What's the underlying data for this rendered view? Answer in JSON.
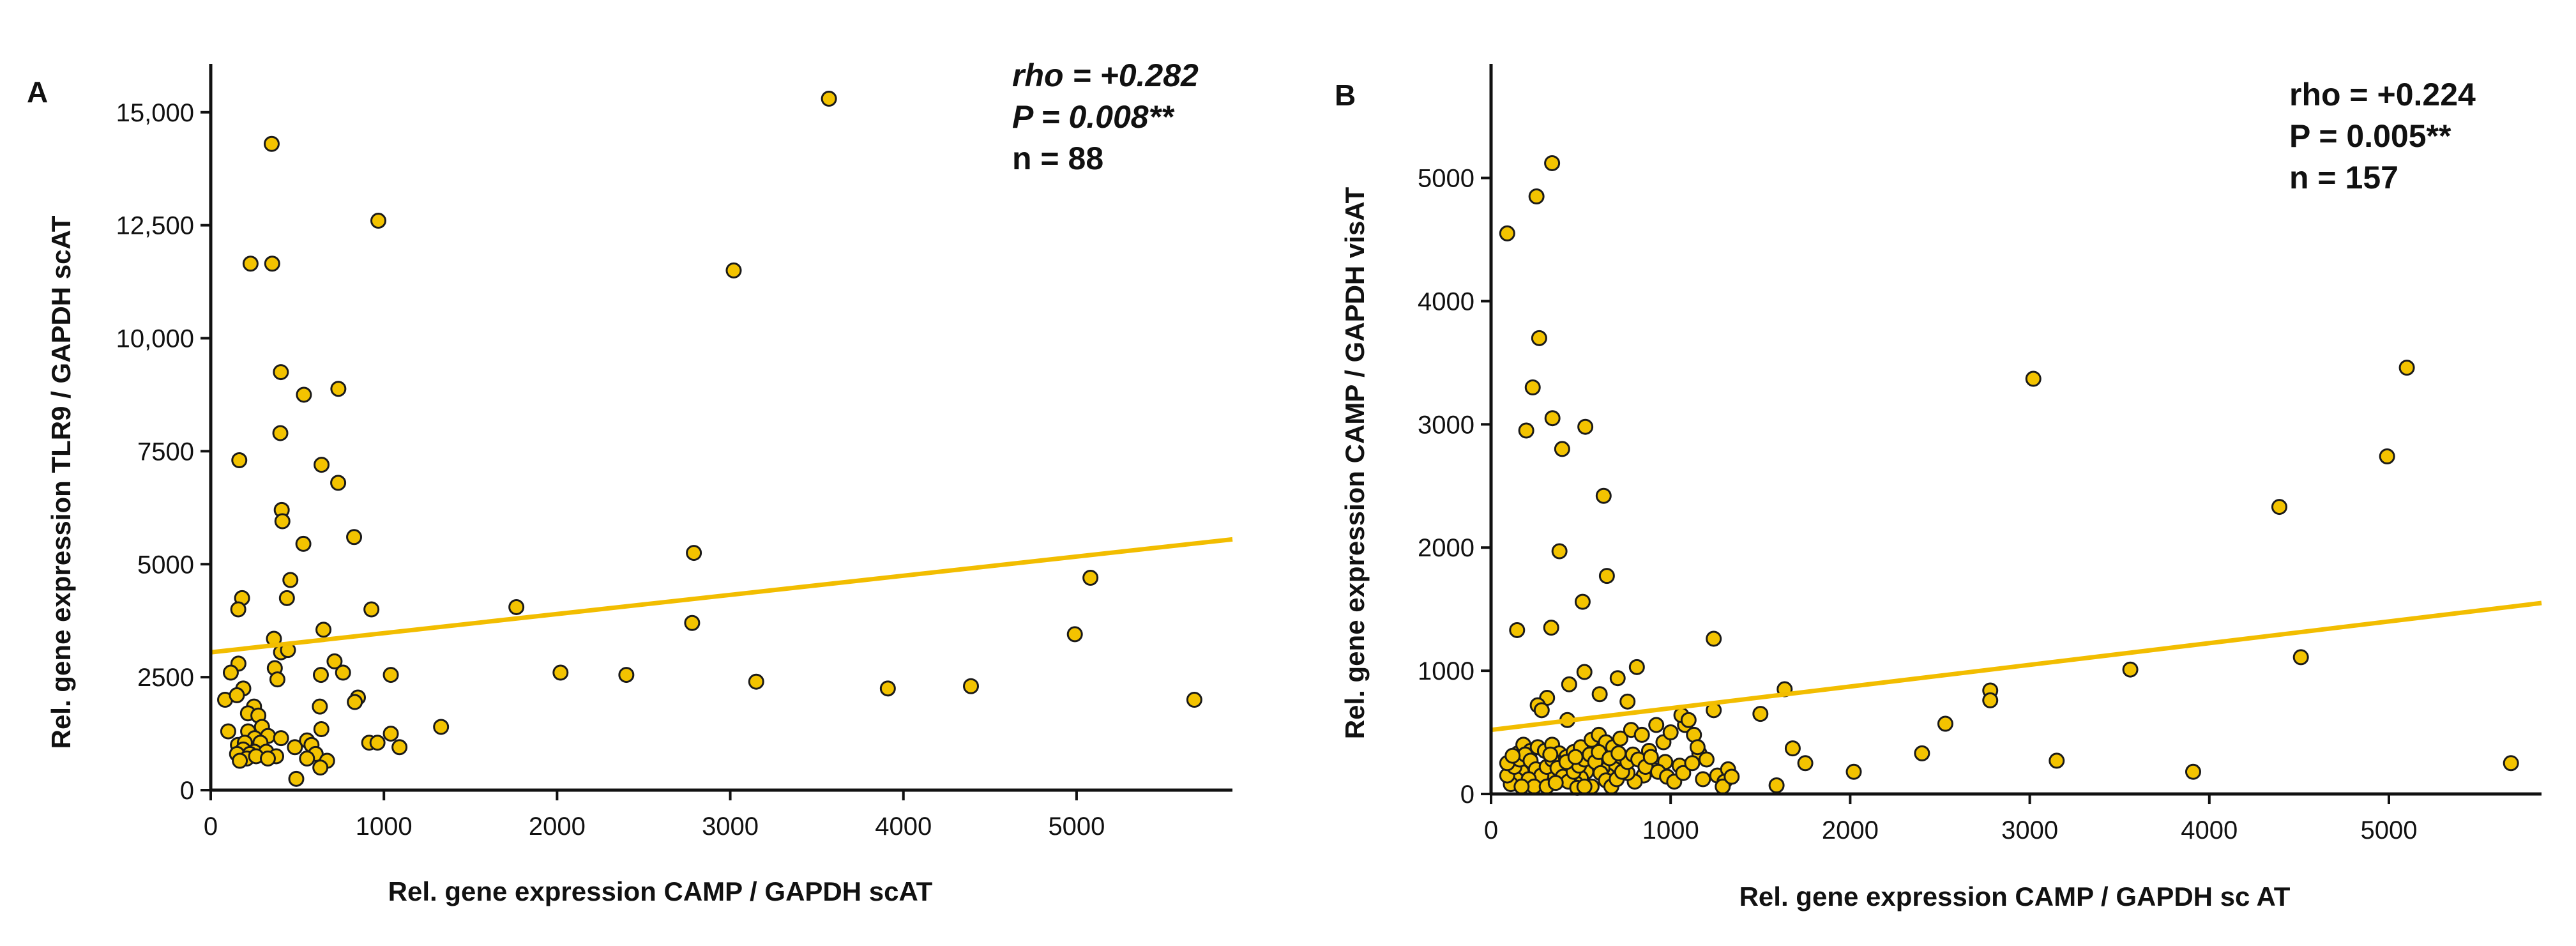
{
  "colors": {
    "point_fill": "#f3c300",
    "point_stroke": "#1a1a1a",
    "trend": "#f2bd00",
    "axis": "#111111"
  },
  "chart_data": [
    {
      "type": "scatter",
      "panel": "A",
      "xlabel": "Rel. gene expression CAMP / GAPDH scAT",
      "ylabel": "Rel. gene expression TLR9 / GAPDH scAT",
      "xlim": [
        0,
        5900
      ],
      "ylim": [
        0,
        16000
      ],
      "xticks": [
        0,
        1000,
        2000,
        3000,
        4000,
        5000
      ],
      "yticks": [
        0,
        2500,
        5000,
        7500,
        10000,
        12500,
        15000
      ],
      "xtick_labels": [
        "0",
        "1000",
        "2000",
        "3000",
        "4000",
        "5000"
      ],
      "ytick_labels": [
        "0",
        "2500",
        "5000",
        "7500",
        "10,000",
        "12,500",
        "15,000"
      ],
      "stats": {
        "rho": "rho = +0.282",
        "p": "P = 0.008**",
        "n": "n = 88"
      },
      "trendline": {
        "x": [
          0,
          5900
        ],
        "y": [
          3050,
          5550
        ]
      },
      "points": [
        [
          352,
          14300
        ],
        [
          3570,
          15300
        ],
        [
          968,
          12600
        ],
        [
          230,
          11650
        ],
        [
          355,
          11650
        ],
        [
          3020,
          11500
        ],
        [
          405,
          9250
        ],
        [
          538,
          8750
        ],
        [
          737,
          8880
        ],
        [
          402,
          7900
        ],
        [
          165,
          7300
        ],
        [
          640,
          7200
        ],
        [
          736,
          6800
        ],
        [
          410,
          6200
        ],
        [
          414,
          5950
        ],
        [
          828,
          5600
        ],
        [
          535,
          5450
        ],
        [
          2790,
          5250
        ],
        [
          5080,
          4700
        ],
        [
          460,
          4650
        ],
        [
          181,
          4250
        ],
        [
          440,
          4250
        ],
        [
          1765,
          4050
        ],
        [
          159,
          4000
        ],
        [
          928,
          4000
        ],
        [
          2780,
          3700
        ],
        [
          651,
          3550
        ],
        [
          365,
          3350
        ],
        [
          4990,
          3450
        ],
        [
          406,
          3050
        ],
        [
          446,
          3100
        ],
        [
          715,
          2850
        ],
        [
          370,
          2700
        ],
        [
          160,
          2800
        ],
        [
          116,
          2600
        ],
        [
          764,
          2600
        ],
        [
          636,
          2550
        ],
        [
          1040,
          2550
        ],
        [
          385,
          2450
        ],
        [
          2020,
          2600
        ],
        [
          2400,
          2550
        ],
        [
          3150,
          2400
        ],
        [
          3910,
          2250
        ],
        [
          4390,
          2300
        ],
        [
          5680,
          2000
        ],
        [
          188,
          2250
        ],
        [
          83,
          2000
        ],
        [
          850,
          2050
        ],
        [
          832,
          1950
        ],
        [
          151,
          2100
        ],
        [
          250,
          1850
        ],
        [
          630,
          1850
        ],
        [
          215,
          1700
        ],
        [
          275,
          1650
        ],
        [
          101,
          1300
        ],
        [
          296,
          1400
        ],
        [
          1330,
          1400
        ],
        [
          216,
          1300
        ],
        [
          331,
          1200
        ],
        [
          254,
          1150
        ],
        [
          406,
          1150
        ],
        [
          639,
          1350
        ],
        [
          1040,
          1250
        ],
        [
          157,
          1000
        ],
        [
          197,
          1050
        ],
        [
          287,
          1050
        ],
        [
          556,
          1100
        ],
        [
          915,
          1050
        ],
        [
          963,
          1050
        ],
        [
          1090,
          950
        ],
        [
          187,
          900
        ],
        [
          252,
          850
        ],
        [
          152,
          800
        ],
        [
          226,
          800
        ],
        [
          321,
          850
        ],
        [
          486,
          950
        ],
        [
          582,
          1000
        ],
        [
          378,
          750
        ],
        [
          208,
          700
        ],
        [
          262,
          750
        ],
        [
          330,
          700
        ],
        [
          168,
          650
        ],
        [
          606,
          800
        ],
        [
          556,
          700
        ],
        [
          672,
          650
        ],
        [
          633,
          500
        ],
        [
          494,
          250
        ]
      ]
    },
    {
      "type": "scatter",
      "panel": "B",
      "xlabel": "Rel. gene expression CAMP / GAPDH sc AT",
      "ylabel": "Rel. gene expression CAMP / GAPDH visAT",
      "xlim": [
        0,
        5850
      ],
      "ylim": [
        0,
        5900
      ],
      "xticks": [
        0,
        1000,
        2000,
        3000,
        4000,
        5000
      ],
      "yticks": [
        0,
        1000,
        2000,
        3000,
        4000,
        5000
      ],
      "xtick_labels": [
        "0",
        "1000",
        "2000",
        "3000",
        "4000",
        "5000"
      ],
      "ytick_labels": [
        "0",
        "1000",
        "2000",
        "3000",
        "4000",
        "5000"
      ],
      "stats": {
        "rho": "rho = +0.224",
        "p": "P = 0.005**",
        "n": "n = 157"
      },
      "trendline": {
        "x": [
          0,
          5850
        ],
        "y": [
          520,
          1550
        ]
      },
      "points": [
        [
          340,
          5120
        ],
        [
          90,
          4550
        ],
        [
          253,
          4850
        ],
        [
          268,
          3700
        ],
        [
          232,
          3300
        ],
        [
          196,
          2950
        ],
        [
          342,
          3050
        ],
        [
          525,
          2980
        ],
        [
          396,
          2800
        ],
        [
          3020,
          3370
        ],
        [
          5100,
          3460
        ],
        [
          4990,
          2740
        ],
        [
          4390,
          2330
        ],
        [
          627,
          2420
        ],
        [
          381,
          1970
        ],
        [
          645,
          1770
        ],
        [
          145,
          1330
        ],
        [
          335,
          1350
        ],
        [
          510,
          1560
        ],
        [
          1240,
          1260
        ],
        [
          3560,
          1010
        ],
        [
          4510,
          1110
        ],
        [
          2780,
          840
        ],
        [
          2780,
          760
        ],
        [
          1635,
          850
        ],
        [
          520,
          990
        ],
        [
          705,
          940
        ],
        [
          812,
          1030
        ],
        [
          435,
          890
        ],
        [
          312,
          780
        ],
        [
          260,
          720
        ],
        [
          282,
          680
        ],
        [
          605,
          810
        ],
        [
          760,
          750
        ],
        [
          1500,
          650
        ],
        [
          425,
          600
        ],
        [
          920,
          560
        ],
        [
          1080,
          560
        ],
        [
          1240,
          680
        ],
        [
          2530,
          570
        ],
        [
          2400,
          330
        ],
        [
          3150,
          270
        ],
        [
          3910,
          180
        ],
        [
          5680,
          250
        ],
        [
          2020,
          180
        ],
        [
          1750,
          250
        ],
        [
          1680,
          370
        ],
        [
          1590,
          70
        ],
        [
          150,
          330
        ],
        [
          180,
          400
        ],
        [
          220,
          350
        ],
        [
          260,
          380
        ],
        [
          300,
          350
        ],
        [
          340,
          400
        ],
        [
          380,
          330
        ],
        [
          420,
          300
        ],
        [
          460,
          340
        ],
        [
          500,
          380
        ],
        [
          560,
          440
        ],
        [
          600,
          480
        ],
        [
          640,
          420
        ],
        [
          680,
          380
        ],
        [
          720,
          450
        ],
        [
          780,
          520
        ],
        [
          840,
          480
        ],
        [
          880,
          350
        ],
        [
          960,
          420
        ],
        [
          1000,
          500
        ],
        [
          1060,
          640
        ],
        [
          1100,
          600
        ],
        [
          1130,
          480
        ],
        [
          1160,
          330
        ],
        [
          1200,
          280
        ],
        [
          1260,
          150
        ],
        [
          1300,
          100
        ],
        [
          1320,
          200
        ],
        [
          1180,
          120
        ],
        [
          1050,
          230
        ],
        [
          970,
          260
        ],
        [
          900,
          200
        ],
        [
          850,
          150
        ],
        [
          800,
          100
        ],
        [
          760,
          170
        ],
        [
          730,
          240
        ],
        [
          690,
          200
        ],
        [
          650,
          150
        ],
        [
          620,
          210
        ],
        [
          590,
          280
        ],
        [
          560,
          230
        ],
        [
          530,
          180
        ],
        [
          500,
          130
        ],
        [
          470,
          90
        ],
        [
          440,
          150
        ],
        [
          410,
          210
        ],
        [
          380,
          250
        ],
        [
          350,
          180
        ],
        [
          320,
          130
        ],
        [
          290,
          90
        ],
        [
          260,
          160
        ],
        [
          230,
          210
        ],
        [
          200,
          250
        ],
        [
          170,
          180
        ],
        [
          140,
          120
        ],
        [
          110,
          80
        ],
        [
          90,
          150
        ],
        [
          130,
          220
        ],
        [
          160,
          280
        ],
        [
          190,
          320
        ],
        [
          220,
          270
        ],
        [
          250,
          200
        ],
        [
          280,
          150
        ],
        [
          310,
          220
        ],
        [
          340,
          280
        ],
        [
          370,
          210
        ],
        [
          400,
          140
        ],
        [
          430,
          100
        ],
        [
          460,
          180
        ],
        [
          490,
          230
        ],
        [
          520,
          280
        ],
        [
          550,
          320
        ],
        [
          580,
          260
        ],
        [
          610,
          170
        ],
        [
          640,
          110
        ],
        [
          670,
          60
        ],
        [
          700,
          120
        ],
        [
          730,
          180
        ],
        [
          760,
          260
        ],
        [
          790,
          320
        ],
        [
          820,
          280
        ],
        [
          860,
          220
        ],
        [
          890,
          300
        ],
        [
          930,
          180
        ],
        [
          980,
          140
        ],
        [
          1020,
          100
        ],
        [
          1070,
          170
        ],
        [
          1120,
          250
        ],
        [
          1150,
          380
        ],
        [
          210,
          120
        ],
        [
          240,
          60
        ],
        [
          310,
          60
        ],
        [
          360,
          90
        ],
        [
          480,
          50
        ],
        [
          560,
          60
        ],
        [
          90,
          250
        ],
        [
          120,
          310
        ],
        [
          170,
          60
        ],
        [
          330,
          320
        ],
        [
          420,
          260
        ],
        [
          470,
          300
        ],
        [
          520,
          60
        ],
        [
          600,
          340
        ],
        [
          660,
          290
        ],
        [
          710,
          330
        ],
        [
          1290,
          60
        ],
        [
          1340,
          140
        ]
      ]
    }
  ]
}
